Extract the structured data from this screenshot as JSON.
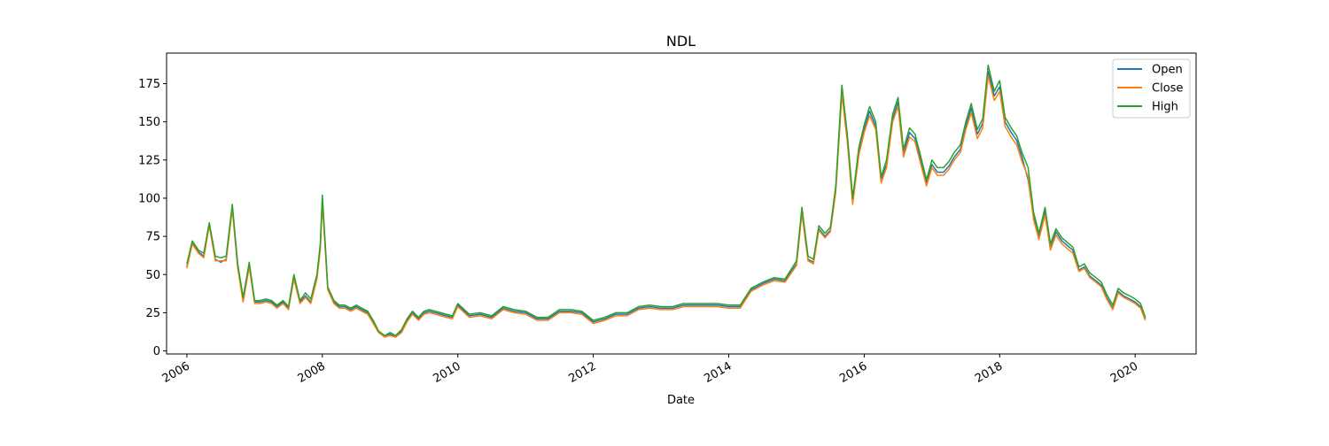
{
  "chart_data": {
    "type": "line",
    "title": "NDL",
    "xlabel": "Date",
    "ylabel": "",
    "xlim": [
      2005.7,
      2020.9
    ],
    "ylim": [
      -2,
      195
    ],
    "x_ticks": [
      2006,
      2008,
      2010,
      2012,
      2014,
      2016,
      2018,
      2020
    ],
    "x_tick_labels": [
      "2006",
      "2008",
      "2010",
      "2012",
      "2014",
      "2016",
      "2018",
      "2020"
    ],
    "y_ticks": [
      0,
      25,
      50,
      75,
      100,
      125,
      150,
      175
    ],
    "y_tick_labels": [
      "0",
      "25",
      "50",
      "75",
      "100",
      "125",
      "150",
      "175"
    ],
    "grid": false,
    "legend_position": "top-right",
    "series": [
      {
        "name": "Open",
        "color": "#1f77b4"
      },
      {
        "name": "Close",
        "color": "#ff7f0e"
      },
      {
        "name": "High",
        "color": "#2ca02c"
      }
    ],
    "x": [
      2006.0,
      2006.08,
      2006.17,
      2006.25,
      2006.33,
      2006.42,
      2006.5,
      2006.58,
      2006.67,
      2006.75,
      2006.83,
      2006.92,
      2007.0,
      2007.08,
      2007.17,
      2007.25,
      2007.33,
      2007.42,
      2007.5,
      2007.58,
      2007.67,
      2007.75,
      2007.83,
      2007.92,
      2007.97,
      2008.0,
      2008.04,
      2008.08,
      2008.17,
      2008.25,
      2008.33,
      2008.42,
      2008.5,
      2008.58,
      2008.67,
      2008.75,
      2008.83,
      2008.92,
      2009.0,
      2009.08,
      2009.17,
      2009.25,
      2009.33,
      2009.42,
      2009.5,
      2009.58,
      2009.67,
      2009.75,
      2009.83,
      2009.92,
      2010.0,
      2010.17,
      2010.33,
      2010.5,
      2010.67,
      2010.83,
      2011.0,
      2011.17,
      2011.33,
      2011.5,
      2011.67,
      2011.83,
      2012.0,
      2012.17,
      2012.33,
      2012.5,
      2012.67,
      2012.83,
      2013.0,
      2013.17,
      2013.33,
      2013.5,
      2013.67,
      2013.83,
      2014.0,
      2014.17,
      2014.33,
      2014.5,
      2014.67,
      2014.83,
      2015.0,
      2015.08,
      2015.17,
      2015.25,
      2015.33,
      2015.42,
      2015.5,
      2015.58,
      2015.67,
      2015.75,
      2015.83,
      2015.92,
      2016.0,
      2016.08,
      2016.17,
      2016.25,
      2016.33,
      2016.42,
      2016.5,
      2016.58,
      2016.67,
      2016.75,
      2016.83,
      2016.92,
      2017.0,
      2017.08,
      2017.17,
      2017.25,
      2017.33,
      2017.42,
      2017.5,
      2017.58,
      2017.67,
      2017.75,
      2017.83,
      2017.92,
      2018.0,
      2018.08,
      2018.17,
      2018.25,
      2018.33,
      2018.42,
      2018.5,
      2018.58,
      2018.67,
      2018.75,
      2018.83,
      2018.92,
      2019.0,
      2019.08,
      2019.17,
      2019.25,
      2019.33,
      2019.42,
      2019.5,
      2019.58,
      2019.67,
      2019.75,
      2019.83,
      2019.92,
      2020.0,
      2020.08,
      2020.15
    ],
    "high": [
      57,
      72,
      66,
      64,
      84,
      62,
      61,
      62,
      96,
      57,
      35,
      58,
      33,
      33,
      34,
      33,
      30,
      33,
      29,
      50,
      33,
      38,
      34,
      50,
      70,
      102,
      72,
      42,
      33,
      30,
      30,
      28,
      30,
      28,
      26,
      20,
      13,
      10,
      12,
      10,
      14,
      21,
      26,
      22,
      26,
      27,
      26,
      25,
      24,
      23,
      31,
      24,
      25,
      23,
      29,
      27,
      26,
      22,
      22,
      27,
      27,
      26,
      20,
      22,
      25,
      25,
      29,
      30,
      29,
      29,
      31,
      31,
      31,
      31,
      30,
      30,
      41,
      45,
      48,
      47,
      59,
      94,
      62,
      60,
      82,
      77,
      81,
      108,
      174,
      142,
      100,
      133,
      148,
      160,
      150,
      114,
      125,
      155,
      166,
      132,
      146,
      142,
      128,
      112,
      125,
      120,
      120,
      124,
      130,
      135,
      150,
      162,
      145,
      152,
      187,
      170,
      177,
      153,
      146,
      141,
      130,
      120,
      91,
      77,
      94,
      70,
      80,
      74,
      71,
      68,
      55,
      57,
      51,
      48,
      45,
      37,
      30,
      41,
      38,
      36,
      34,
      31,
      22
    ],
    "close": [
      54,
      70,
      64,
      61,
      82,
      59,
      59,
      59,
      93,
      54,
      32,
      55,
      31,
      31,
      32,
      31,
      28,
      31,
      27,
      47,
      31,
      35,
      31,
      47,
      66,
      97,
      68,
      40,
      31,
      28,
      28,
      26,
      28,
      26,
      24,
      18,
      12,
      9,
      10,
      9,
      12,
      19,
      24,
      20,
      24,
      25,
      24,
      23,
      22,
      21,
      29,
      22,
      23,
      21,
      27,
      25,
      24,
      20,
      20,
      25,
      25,
      24,
      18,
      20,
      23,
      23,
      27,
      28,
      27,
      27,
      29,
      29,
      29,
      29,
      28,
      28,
      39,
      43,
      46,
      45,
      56,
      90,
      59,
      57,
      79,
      74,
      78,
      104,
      168,
      137,
      96,
      128,
      143,
      154,
      145,
      110,
      120,
      150,
      160,
      127,
      140,
      137,
      123,
      108,
      120,
      115,
      115,
      119,
      125,
      130,
      145,
      156,
      139,
      146,
      180,
      164,
      170,
      147,
      140,
      135,
      124,
      114,
      86,
      73,
      89,
      66,
      76,
      70,
      67,
      64,
      52,
      54,
      48,
      45,
      42,
      34,
      27,
      38,
      35,
      33,
      31,
      28,
      20
    ],
    "open": [
      55,
      71,
      65,
      62,
      83,
      60,
      58,
      60,
      94,
      55,
      33,
      56,
      32,
      32,
      33,
      32,
      29,
      32,
      28,
      48,
      32,
      36,
      32,
      48,
      68,
      99,
      70,
      41,
      32,
      29,
      29,
      27,
      29,
      27,
      25,
      19,
      12,
      10,
      11,
      9,
      13,
      20,
      25,
      21,
      25,
      26,
      25,
      24,
      23,
      22,
      30,
      23,
      24,
      22,
      28,
      26,
      25,
      21,
      21,
      26,
      26,
      25,
      19,
      21,
      24,
      24,
      28,
      29,
      28,
      28,
      30,
      30,
      30,
      30,
      29,
      29,
      40,
      44,
      47,
      46,
      57,
      92,
      60,
      58,
      80,
      75,
      79,
      106,
      171,
      139,
      98,
      130,
      145,
      157,
      147,
      112,
      122,
      152,
      163,
      129,
      143,
      139,
      125,
      110,
      122,
      117,
      117,
      121,
      127,
      132,
      147,
      159,
      142,
      149,
      183,
      167,
      173,
      150,
      143,
      138,
      127,
      112,
      88,
      75,
      91,
      67,
      78,
      72,
      69,
      66,
      53,
      55,
      49,
      46,
      43,
      35,
      28,
      39,
      36,
      34,
      32,
      29,
      21
    ]
  }
}
